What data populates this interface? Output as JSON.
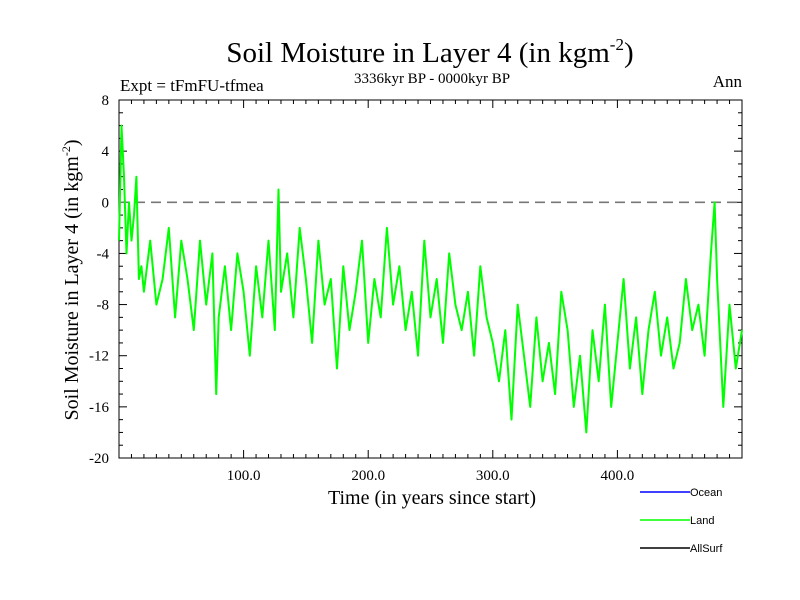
{
  "chart_data": {
    "type": "line",
    "title": "Soil Moisture in Layer 4 (in kgm",
    "title_sup": "-2",
    "title_close": ")",
    "left_label": "Expt = tFmFU-tfmea",
    "center_label": "3336kyr BP - 0000kyr BP",
    "right_label": "Ann",
    "xlabel": "Time (in years since start)",
    "ylabel": "Soil Moisture in Layer 4 (in kgm",
    "ylabel_sup": "-2",
    "ylabel_close": ")",
    "xlim": [
      0,
      500
    ],
    "ylim": [
      -20,
      8
    ],
    "xticks": [
      100,
      200,
      300,
      400
    ],
    "xtick_labels": [
      "100.0",
      "200.0",
      "300.0",
      "400.0"
    ],
    "yticks": [
      8,
      4,
      0,
      -4,
      -8,
      -12,
      -16,
      -20
    ],
    "ytick_labels": [
      "8",
      "4",
      "0",
      "-4",
      "-8",
      "-12",
      "-16",
      "-20"
    ],
    "reference_line": 0,
    "legend": [
      {
        "name": "Ocean",
        "color": "#0000ff"
      },
      {
        "name": "Land",
        "color": "#00ff00"
      },
      {
        "name": "AllSurf",
        "color": "#000000"
      }
    ],
    "series": [
      {
        "name": "Land",
        "color": "#00ff00",
        "x": [
          0,
          2,
          4,
          6,
          8,
          10,
          12,
          14,
          16,
          18,
          20,
          25,
          30,
          35,
          40,
          45,
          50,
          55,
          60,
          65,
          70,
          75,
          78,
          80,
          85,
          90,
          95,
          100,
          105,
          110,
          115,
          120,
          125,
          128,
          130,
          135,
          140,
          145,
          150,
          155,
          160,
          165,
          170,
          175,
          180,
          185,
          190,
          195,
          200,
          205,
          210,
          215,
          220,
          225,
          230,
          235,
          240,
          245,
          250,
          255,
          260,
          265,
          270,
          275,
          280,
          285,
          290,
          295,
          300,
          305,
          310,
          315,
          320,
          325,
          330,
          335,
          340,
          345,
          350,
          355,
          360,
          365,
          370,
          375,
          380,
          385,
          390,
          395,
          400,
          405,
          410,
          415,
          420,
          425,
          430,
          435,
          440,
          445,
          450,
          455,
          460,
          465,
          470,
          475,
          478,
          480,
          485,
          490,
          495,
          500
        ],
        "values": [
          -3,
          6,
          2,
          -4,
          0,
          -3,
          -1,
          2,
          -6,
          -5,
          -7,
          -3,
          -8,
          -6,
          -2,
          -9,
          -3,
          -6,
          -10,
          -3,
          -8,
          -4,
          -15,
          -9,
          -5,
          -10,
          -4,
          -7,
          -12,
          -5,
          -9,
          -3,
          -10,
          1,
          -7,
          -4,
          -9,
          -2,
          -6,
          -11,
          -3,
          -8,
          -6,
          -13,
          -5,
          -10,
          -7,
          -3,
          -11,
          -6,
          -9,
          -2,
          -8,
          -5,
          -10,
          -7,
          -12,
          -3,
          -9,
          -6,
          -11,
          -4,
          -8,
          -10,
          -7,
          -12,
          -5,
          -9,
          -11,
          -14,
          -10,
          -17,
          -8,
          -12,
          -16,
          -9,
          -14,
          -11,
          -15,
          -7,
          -10,
          -16,
          -12,
          -18,
          -10,
          -14,
          -8,
          -16,
          -11,
          -6,
          -13,
          -9,
          -15,
          -10,
          -7,
          -12,
          -9,
          -13,
          -11,
          -6,
          -10,
          -8,
          -12,
          -4,
          0,
          -6,
          -16,
          -8,
          -13,
          -10
        ]
      }
    ]
  }
}
